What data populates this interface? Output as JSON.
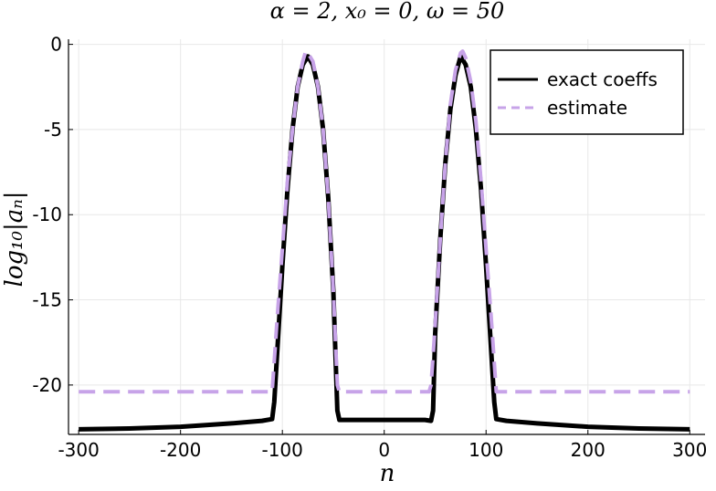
{
  "chart_data": {
    "type": "line",
    "title": "α = 2, x₀ = 0, ω = 50",
    "xlabel": "n",
    "ylabel": "log₁₀|aₙ|",
    "xlim": [
      -310,
      315
    ],
    "ylim": [
      -22.9,
      0.3
    ],
    "xticks": [
      -300,
      -200,
      -100,
      0,
      100,
      200,
      300
    ],
    "xtick_labels": [
      "-300",
      "-200",
      "-100",
      "0",
      "100",
      "200",
      "300"
    ],
    "yticks": [
      0,
      -5,
      -10,
      -15,
      -20
    ],
    "ytick_labels": [
      "0",
      "-5",
      "-10",
      "-15",
      "-20"
    ],
    "grid": true,
    "legend_position": "top-right",
    "series": [
      {
        "name": "exact coeffs",
        "style": "solid",
        "color": "#000000",
        "x": [
          -300,
          -250,
          -200,
          -150,
          -120,
          -110,
          -108,
          -100,
          -95,
          -90,
          -85,
          -80,
          -75,
          -70,
          -65,
          -60,
          -55,
          -50,
          -46,
          -44,
          -40,
          -20,
          0,
          20,
          40,
          46,
          48,
          50,
          55,
          60,
          65,
          70,
          75,
          80,
          85,
          90,
          95,
          100,
          108,
          110,
          120,
          150,
          200,
          250,
          300
        ],
        "y": [
          -22.6,
          -22.55,
          -22.45,
          -22.25,
          -22.1,
          -22.0,
          -21.0,
          -13.0,
          -8.5,
          -5.0,
          -2.5,
          -1.2,
          -0.7,
          -1.2,
          -2.5,
          -5.0,
          -9.0,
          -14.5,
          -21.5,
          -22.05,
          -22.05,
          -22.05,
          -22.05,
          -22.05,
          -22.05,
          -22.1,
          -21.5,
          -17.0,
          -11.5,
          -7.0,
          -3.8,
          -1.8,
          -0.7,
          -1.2,
          -2.5,
          -5.0,
          -8.5,
          -13.0,
          -21.0,
          -22.0,
          -22.1,
          -22.25,
          -22.45,
          -22.55,
          -22.6
        ]
      },
      {
        "name": "estimate",
        "style": "dashed",
        "color": "#c7a3e8",
        "x": [
          -300,
          -110,
          -105,
          -100,
          -95,
          -90,
          -85,
          -80,
          -77,
          -75,
          -70,
          -65,
          -60,
          -55,
          -50,
          -46,
          -44,
          0,
          44,
          46,
          50,
          55,
          60,
          65,
          70,
          75,
          77,
          80,
          85,
          90,
          95,
          100,
          105,
          110,
          300
        ],
        "y": [
          -20.4,
          -20.4,
          -16.0,
          -12.0,
          -8.0,
          -5.0,
          -2.5,
          -1.0,
          -0.4,
          -0.5,
          -1.0,
          -2.5,
          -5.0,
          -9.0,
          -14.5,
          -20.0,
          -20.4,
          -20.4,
          -20.4,
          -20.0,
          -16.5,
          -11.5,
          -7.0,
          -3.5,
          -1.5,
          -0.5,
          -0.4,
          -0.8,
          -2.2,
          -4.5,
          -8.0,
          -12.0,
          -16.0,
          -20.4,
          -20.4
        ]
      }
    ]
  }
}
